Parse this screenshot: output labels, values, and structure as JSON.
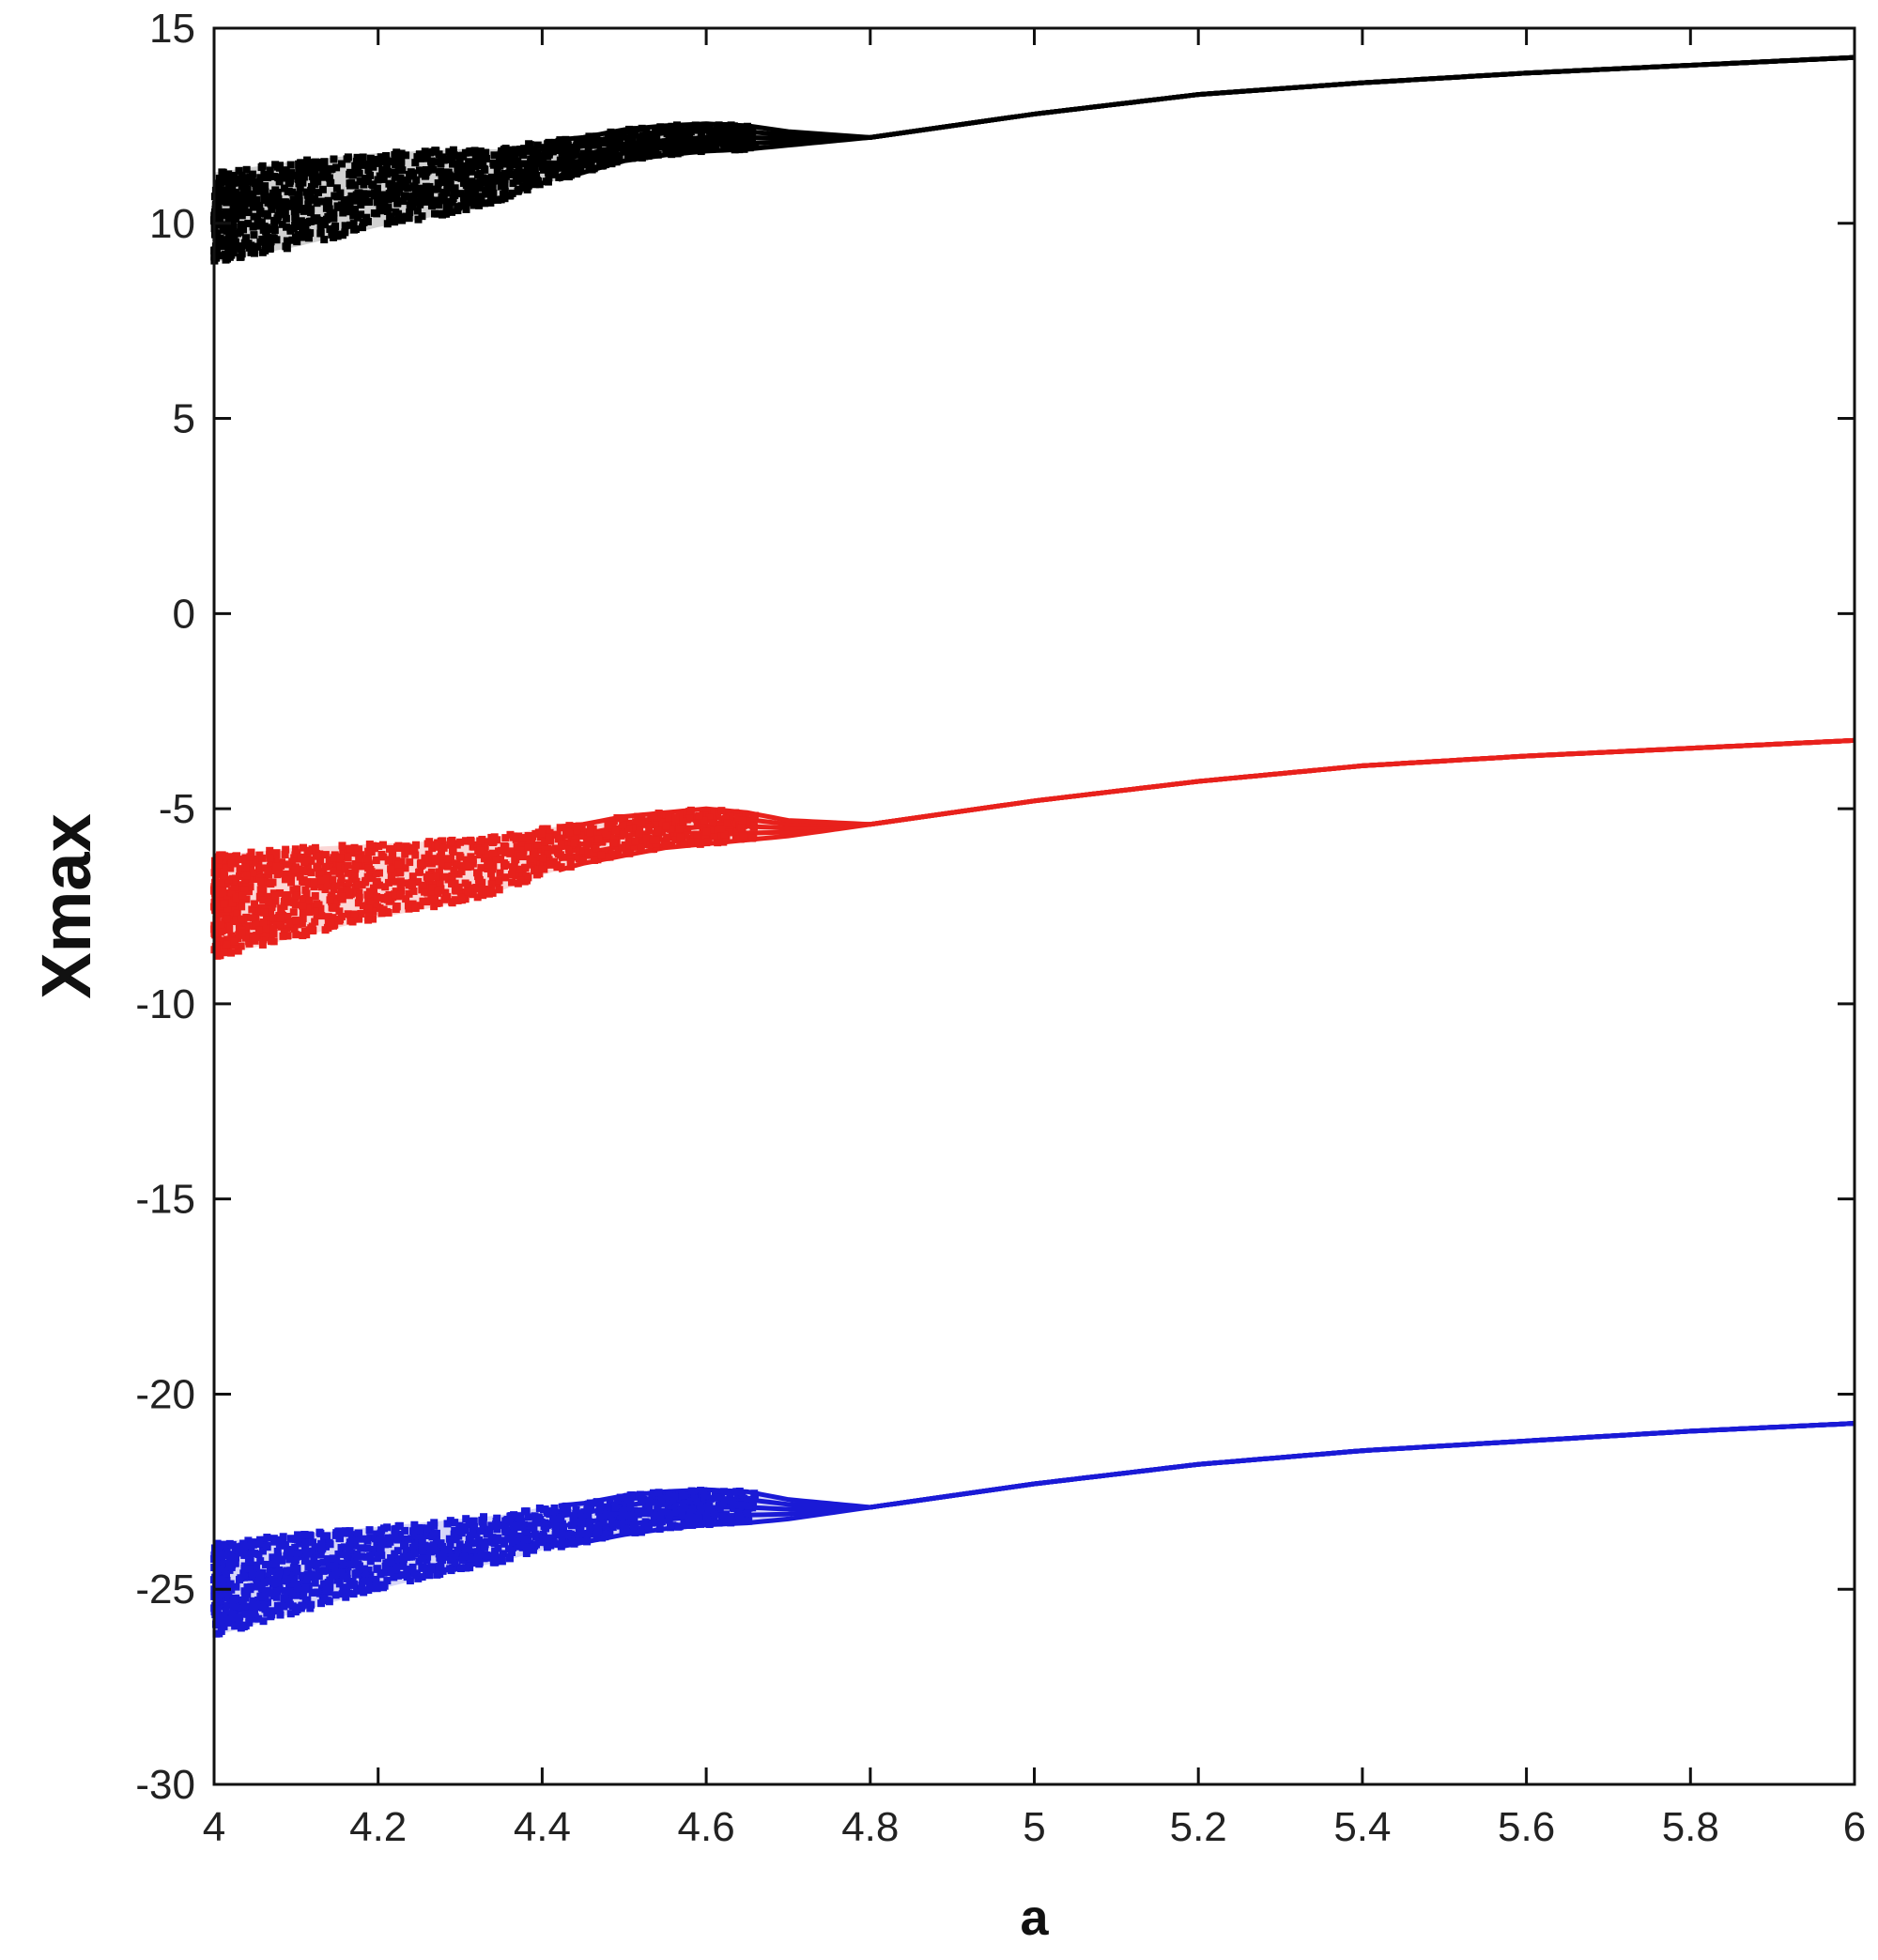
{
  "chart_data": {
    "type": "scatter",
    "title": "",
    "xlabel": "a",
    "ylabel": "Xmax",
    "xlim": [
      4,
      6
    ],
    "ylim": [
      -30,
      15
    ],
    "xticks": [
      4,
      4.2,
      4.4,
      4.6,
      4.8,
      5,
      5.2,
      5.4,
      5.6,
      5.8,
      6
    ],
    "xtick_labels": [
      "4",
      "4.2",
      "4.4",
      "4.6",
      "4.8",
      "5",
      "5.2",
      "5.4",
      "5.6",
      "5.8",
      "6"
    ],
    "yticks": [
      -30,
      -25,
      -20,
      -15,
      -10,
      -5,
      0,
      5,
      10,
      15
    ],
    "ytick_labels": [
      "-30",
      "-25",
      "-20",
      "-15",
      "-10",
      "-5",
      "0",
      "5",
      "10",
      "15"
    ],
    "grid": false,
    "legend": "none",
    "series": [
      {
        "color": "#000000",
        "x": [
          4.0,
          4.1,
          4.2,
          4.3,
          4.35,
          4.4,
          4.45,
          4.5,
          4.55,
          4.6,
          4.65,
          4.7,
          4.8,
          4.9,
          5.0,
          5.2,
          5.4,
          5.6,
          5.8,
          6.0
        ],
        "y_min": [
          9.0,
          9.4,
          9.9,
          10.3,
          10.6,
          11.0,
          11.3,
          11.6,
          11.75,
          11.85,
          11.9,
          12.0,
          12.2,
          12.5,
          12.8,
          13.3,
          13.6,
          13.85,
          14.05,
          14.25
        ],
        "y_max": [
          11.3,
          11.6,
          11.8,
          11.9,
          11.9,
          12.1,
          12.2,
          12.4,
          12.5,
          12.55,
          12.5,
          12.35,
          12.2,
          12.5,
          12.8,
          13.3,
          13.6,
          13.85,
          14.05,
          14.25
        ]
      },
      {
        "color": "#e8211c",
        "x": [
          4.0,
          4.1,
          4.2,
          4.3,
          4.35,
          4.4,
          4.45,
          4.5,
          4.55,
          4.6,
          4.65,
          4.7,
          4.8,
          4.9,
          5.0,
          5.2,
          5.4,
          5.6,
          5.8,
          6.0
        ],
        "y_min": [
          -8.8,
          -8.3,
          -7.8,
          -7.4,
          -7.1,
          -6.7,
          -6.4,
          -6.2,
          -6.0,
          -5.9,
          -5.8,
          -5.7,
          -5.4,
          -5.1,
          -4.8,
          -4.3,
          -3.9,
          -3.65,
          -3.45,
          -3.25
        ],
        "y_max": [
          -6.2,
          -6.0,
          -5.9,
          -5.8,
          -5.7,
          -5.5,
          -5.4,
          -5.2,
          -5.1,
          -5.0,
          -5.1,
          -5.3,
          -5.4,
          -5.1,
          -4.8,
          -4.3,
          -3.9,
          -3.65,
          -3.45,
          -3.25
        ]
      },
      {
        "color": "#1a1ad6",
        "x": [
          4.0,
          4.1,
          4.2,
          4.3,
          4.35,
          4.4,
          4.45,
          4.5,
          4.55,
          4.6,
          4.65,
          4.7,
          4.8,
          4.9,
          5.0,
          5.2,
          5.4,
          5.6,
          5.8,
          6.0
        ],
        "y_min": [
          -26.2,
          -25.6,
          -25.0,
          -24.5,
          -24.3,
          -24.0,
          -23.8,
          -23.6,
          -23.45,
          -23.35,
          -23.3,
          -23.2,
          -22.9,
          -22.6,
          -22.3,
          -21.8,
          -21.45,
          -21.2,
          -20.95,
          -20.75
        ],
        "y_max": [
          -23.8,
          -23.6,
          -23.4,
          -23.2,
          -23.1,
          -22.9,
          -22.8,
          -22.6,
          -22.5,
          -22.45,
          -22.5,
          -22.7,
          -22.9,
          -22.6,
          -22.3,
          -21.8,
          -21.45,
          -21.2,
          -20.95,
          -20.75
        ]
      }
    ]
  }
}
